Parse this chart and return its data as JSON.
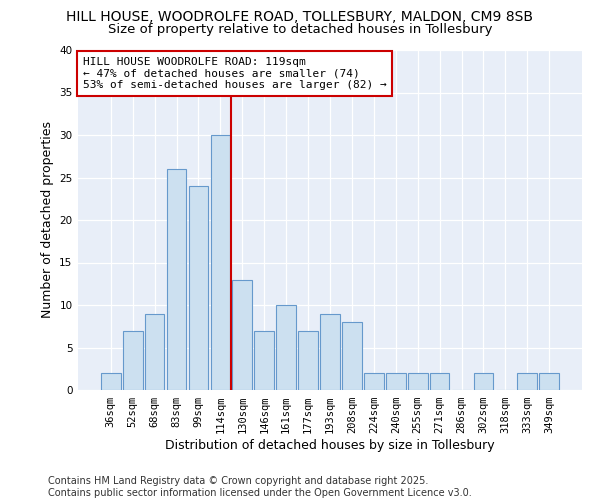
{
  "title": "HILL HOUSE, WOODROLFE ROAD, TOLLESBURY, MALDON, CM9 8SB",
  "subtitle": "Size of property relative to detached houses in Tollesbury",
  "xlabel": "Distribution of detached houses by size in Tollesbury",
  "ylabel": "Number of detached properties",
  "categories": [
    "36sqm",
    "52sqm",
    "68sqm",
    "83sqm",
    "99sqm",
    "114sqm",
    "130sqm",
    "146sqm",
    "161sqm",
    "177sqm",
    "193sqm",
    "208sqm",
    "224sqm",
    "240sqm",
    "255sqm",
    "271sqm",
    "286sqm",
    "302sqm",
    "318sqm",
    "333sqm",
    "349sqm"
  ],
  "values": [
    2,
    7,
    9,
    26,
    24,
    30,
    13,
    7,
    10,
    7,
    9,
    8,
    2,
    2,
    2,
    2,
    0,
    2,
    0,
    2,
    2
  ],
  "bar_color": "#cce0f0",
  "bar_edge_color": "#6699cc",
  "vline_x": 5.5,
  "vline_color": "#cc0000",
  "annotation_text": "HILL HOUSE WOODROLFE ROAD: 119sqm\n← 47% of detached houses are smaller (74)\n53% of semi-detached houses are larger (82) →",
  "annotation_box_color": "#ffffff",
  "annotation_border_color": "#cc0000",
  "ylim": [
    0,
    40
  ],
  "yticks": [
    0,
    5,
    10,
    15,
    20,
    25,
    30,
    35,
    40
  ],
  "fig_background_color": "#ffffff",
  "plot_background_color": "#e8eef8",
  "grid_color": "#ffffff",
  "footer_text": "Contains HM Land Registry data © Crown copyright and database right 2025.\nContains public sector information licensed under the Open Government Licence v3.0.",
  "title_fontsize": 10,
  "subtitle_fontsize": 9.5,
  "axis_label_fontsize": 9,
  "tick_fontsize": 7.5,
  "annotation_fontsize": 8,
  "footer_fontsize": 7
}
